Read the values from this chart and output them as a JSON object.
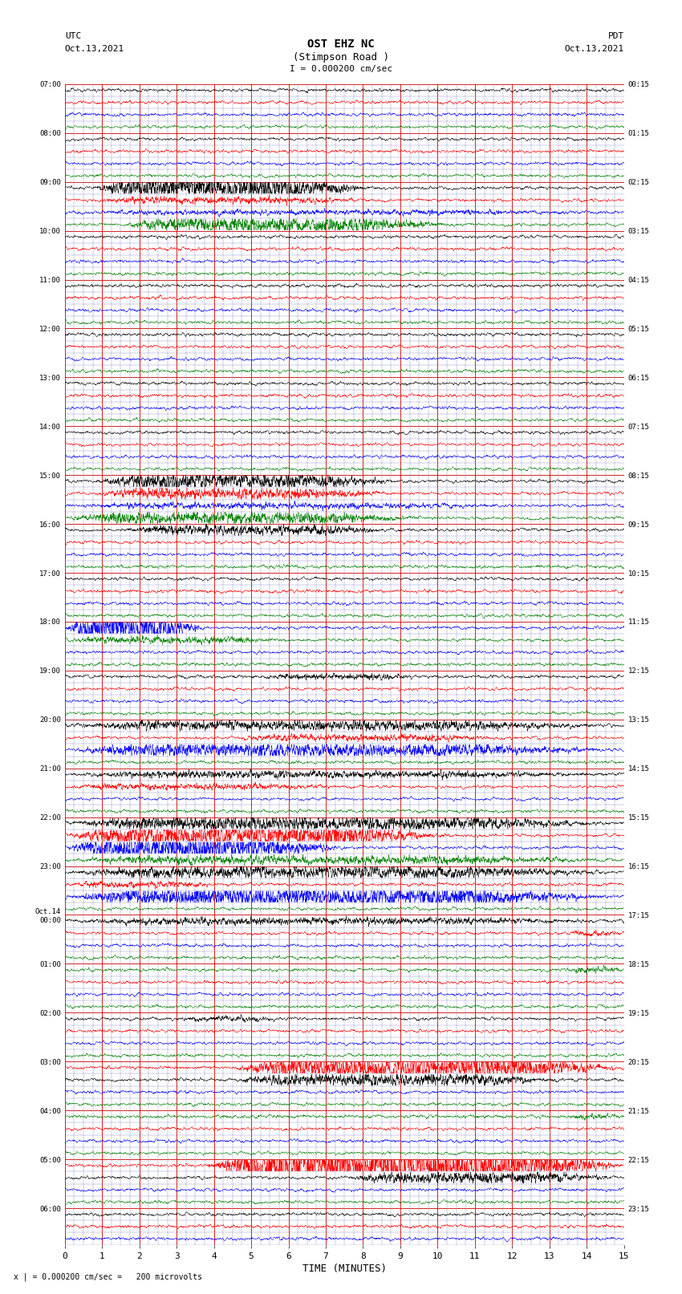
{
  "title_line1": "OST EHZ NC",
  "title_line2": "(Stimpson Road )",
  "scale_label": "I = 0.000200 cm/sec",
  "left_label1": "UTC",
  "left_label2": "Oct.13,2021",
  "right_label1": "PDT",
  "right_label2": "Oct.13,2021",
  "bottom_label": "TIME (MINUTES)",
  "bottom_note": "x | = 0.000200 cm/sec =   200 microvolts",
  "utc_list": [
    "07:00",
    "",
    "",
    "",
    "08:00",
    "",
    "",
    "",
    "09:00",
    "",
    "",
    "",
    "10:00",
    "",
    "",
    "",
    "11:00",
    "",
    "",
    "",
    "12:00",
    "",
    "",
    "",
    "13:00",
    "",
    "",
    "",
    "14:00",
    "",
    "",
    "",
    "15:00",
    "",
    "",
    "",
    "16:00",
    "",
    "",
    "",
    "17:00",
    "",
    "",
    "",
    "18:00",
    "",
    "",
    "",
    "19:00",
    "",
    "",
    "",
    "20:00",
    "",
    "",
    "",
    "21:00",
    "",
    "",
    "",
    "22:00",
    "",
    "",
    "",
    "23:00",
    "",
    "",
    "",
    "Oct.14\n00:00",
    "",
    "",
    "",
    "01:00",
    "",
    "",
    "",
    "02:00",
    "",
    "",
    "",
    "03:00",
    "",
    "",
    "",
    "04:00",
    "",
    "",
    "",
    "05:00",
    "",
    "",
    "",
    "06:00",
    "",
    ""
  ],
  "pdt_list": [
    "00:15",
    "",
    "",
    "",
    "01:15",
    "",
    "",
    "",
    "02:15",
    "",
    "",
    "",
    "03:15",
    "",
    "",
    "",
    "04:15",
    "",
    "",
    "",
    "05:15",
    "",
    "",
    "",
    "06:15",
    "",
    "",
    "",
    "07:15",
    "",
    "",
    "",
    "08:15",
    "",
    "",
    "",
    "09:15",
    "",
    "",
    "",
    "10:15",
    "",
    "",
    "",
    "11:15",
    "",
    "",
    "",
    "12:15",
    "",
    "",
    "",
    "13:15",
    "",
    "",
    "",
    "14:15",
    "",
    "",
    "",
    "15:15",
    "",
    "",
    "",
    "16:15",
    "",
    "",
    "",
    "17:15",
    "",
    "",
    "",
    "18:15",
    "",
    "",
    "",
    "19:15",
    "",
    "",
    "",
    "20:15",
    "",
    "",
    "",
    "21:15",
    "",
    "",
    "",
    "22:15",
    "",
    "",
    "",
    "23:15",
    "",
    ""
  ],
  "n_rows": 95,
  "n_cols": 15,
  "row_colors": [
    "black",
    "red",
    "blue",
    "green"
  ],
  "fig_width": 8.5,
  "fig_height": 16.13,
  "dpi": 100,
  "trace_lw": 0.35,
  "quiet_amp": 0.06,
  "grid_major_color": "#cc0000",
  "grid_minor_color": "#8888cc",
  "grid_major_lw": 0.6,
  "grid_minor_lw": 0.3,
  "active_rows": {
    "8": {
      "color": "black",
      "amp": 0.42,
      "burst": [
        0.05,
        0.55
      ]
    },
    "9": {
      "color": "red",
      "amp": 0.12,
      "burst": [
        0.05,
        0.55
      ]
    },
    "10": {
      "color": "blue",
      "amp": 0.08,
      "burst": [
        0.0,
        1.0
      ]
    },
    "11": {
      "color": "green",
      "amp": 0.28,
      "burst": [
        0.1,
        0.7
      ]
    },
    "32": {
      "color": "black",
      "amp": 0.3,
      "burst": [
        0.05,
        0.6
      ]
    },
    "33": {
      "color": "red",
      "amp": 0.2,
      "burst": [
        0.05,
        0.6
      ]
    },
    "34": {
      "color": "blue",
      "amp": 0.1,
      "burst": [
        0.0,
        0.8
      ]
    },
    "35": {
      "color": "green",
      "amp": 0.22,
      "burst": [
        0.0,
        0.65
      ]
    },
    "36": {
      "color": "black",
      "amp": 0.18,
      "burst": [
        0.1,
        0.6
      ]
    },
    "44": {
      "color": "blue",
      "amp": 0.5,
      "burst": [
        0.0,
        0.25
      ]
    },
    "45": {
      "color": "green",
      "amp": 0.12,
      "burst": [
        0.0,
        0.4
      ]
    },
    "48": {
      "color": "black",
      "amp": 0.1,
      "burst": [
        0.35,
        0.65
      ]
    },
    "52": {
      "color": "black",
      "amp": 0.18,
      "burst": [
        0.0,
        1.0
      ]
    },
    "53": {
      "color": "red",
      "amp": 0.12,
      "burst": [
        0.3,
        0.8
      ]
    },
    "54": {
      "color": "blue",
      "amp": 0.25,
      "burst": [
        0.0,
        1.0
      ]
    },
    "56": {
      "color": "black",
      "amp": 0.12,
      "burst": [
        0.0,
        1.0
      ]
    },
    "57": {
      "color": "red",
      "amp": 0.1,
      "burst": [
        0.0,
        0.5
      ]
    },
    "60": {
      "color": "black",
      "amp": 0.25,
      "burst": [
        0.0,
        1.0
      ]
    },
    "61": {
      "color": "red",
      "amp": 0.4,
      "burst": [
        0.0,
        0.7
      ]
    },
    "62": {
      "color": "blue",
      "amp": 0.45,
      "burst": [
        0.0,
        0.5
      ]
    },
    "63": {
      "color": "green",
      "amp": 0.15,
      "burst": [
        0.0,
        1.0
      ]
    },
    "64": {
      "color": "black",
      "amp": 0.22,
      "burst": [
        0.0,
        1.0
      ]
    },
    "65": {
      "color": "red",
      "amp": 0.1,
      "burst": [
        0.0,
        0.3
      ]
    },
    "66": {
      "color": "blue",
      "amp": 0.35,
      "burst": [
        0.0,
        1.0
      ]
    },
    "68": {
      "color": "black",
      "amp": 0.12,
      "burst": [
        0.0,
        1.0
      ]
    },
    "69": {
      "color": "red",
      "amp": 0.08,
      "burst": [
        0.9,
        1.0
      ]
    },
    "72": {
      "color": "green",
      "amp": 0.1,
      "burst": [
        0.9,
        1.0
      ]
    },
    "76": {
      "color": "black",
      "amp": 0.08,
      "burst": [
        0.2,
        0.4
      ]
    },
    "80": {
      "color": "red",
      "amp": 0.45,
      "burst": [
        0.3,
        1.0
      ]
    },
    "81": {
      "color": "black",
      "amp": 0.22,
      "burst": [
        0.3,
        0.9
      ]
    },
    "84": {
      "color": "green",
      "amp": 0.08,
      "burst": [
        0.9,
        1.0
      ]
    },
    "88": {
      "color": "red",
      "amp": 0.8,
      "burst": [
        0.25,
        1.0
      ]
    },
    "89": {
      "color": "black",
      "amp": 0.2,
      "burst": [
        0.5,
        1.0
      ]
    }
  }
}
